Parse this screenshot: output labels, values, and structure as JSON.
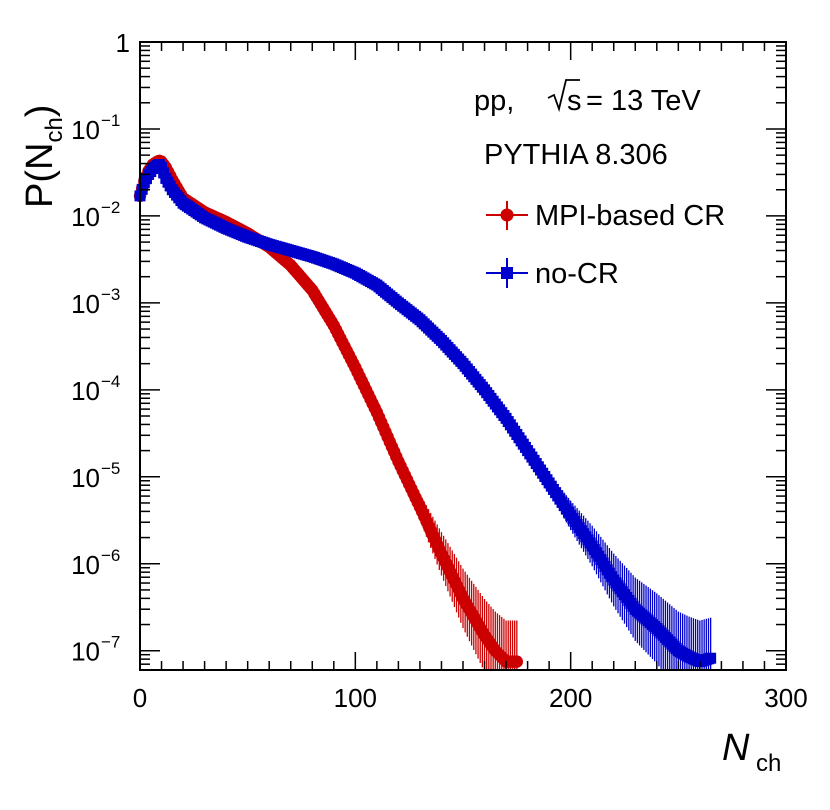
{
  "chart_data": {
    "type": "scatter",
    "x_axis": {
      "label": "N",
      "label_sub": "ch",
      "lim": [
        0,
        300
      ],
      "ticks": [
        0,
        100,
        200,
        300
      ],
      "tick_labels": [
        "0",
        "100",
        "200",
        "300"
      ],
      "scale": "linear"
    },
    "y_axis": {
      "label": "P(N",
      "label_sub": "ch",
      "label_close": ")",
      "scale": "log",
      "lim": [
        6e-08,
        1
      ],
      "ticks": [
        1e-07,
        1e-06,
        1e-05,
        0.0001,
        0.001,
        0.01,
        0.1,
        1
      ],
      "tick_bases": [
        "10",
        "10",
        "10",
        "10",
        "10",
        "10",
        "10",
        "1"
      ],
      "tick_exponents": [
        "−7",
        "−6",
        "−5",
        "−4",
        "−3",
        "−2",
        "−1",
        ""
      ]
    },
    "annotations": {
      "system_prefix": "pp,",
      "energy_s": "s",
      "energy_value": "= 13 TeV",
      "generator": "PYTHIA 8.306"
    },
    "series": [
      {
        "name": "MPI-based CR",
        "marker": "circle",
        "color": "#cc0000",
        "x": [
          0,
          2,
          4,
          6,
          8,
          9,
          10,
          12,
          15,
          20,
          30,
          40,
          50,
          60,
          70,
          80,
          90,
          100,
          110,
          120,
          130,
          140,
          150,
          160,
          165,
          170,
          175
        ],
        "y": [
          0.017,
          0.025,
          0.033,
          0.039,
          0.042,
          0.043,
          0.042,
          0.036,
          0.026,
          0.016,
          0.011,
          0.0085,
          0.0063,
          0.0044,
          0.0027,
          0.0014,
          0.00055,
          0.00018,
          5.5e-05,
          1.5e-05,
          4.5e-06,
          1.3e-06,
          4e-07,
          1.5e-07,
          1e-07,
          7.5e-08,
          7.5e-08
        ]
      },
      {
        "name": "no-CR",
        "marker": "square",
        "color": "#0000cc",
        "x": [
          0,
          2,
          4,
          6,
          8,
          9,
          10,
          12,
          15,
          20,
          30,
          40,
          50,
          60,
          70,
          80,
          90,
          100,
          110,
          120,
          130,
          140,
          150,
          160,
          170,
          180,
          190,
          200,
          210,
          220,
          230,
          240,
          250,
          255,
          260,
          265
        ],
        "y": [
          0.017,
          0.024,
          0.03,
          0.035,
          0.038,
          0.039,
          0.036,
          0.027,
          0.02,
          0.014,
          0.0095,
          0.0072,
          0.0057,
          0.0047,
          0.004,
          0.0034,
          0.0028,
          0.0022,
          0.0016,
          0.001,
          0.00064,
          0.00037,
          0.0002,
          0.0001,
          4.7e-05,
          2e-05,
          8.5e-06,
          3.6e-06,
          1.6e-06,
          6.5e-07,
          3e-07,
          1.8e-07,
          1e-07,
          8.5e-08,
          7.5e-08,
          8.2e-08
        ]
      }
    ]
  }
}
